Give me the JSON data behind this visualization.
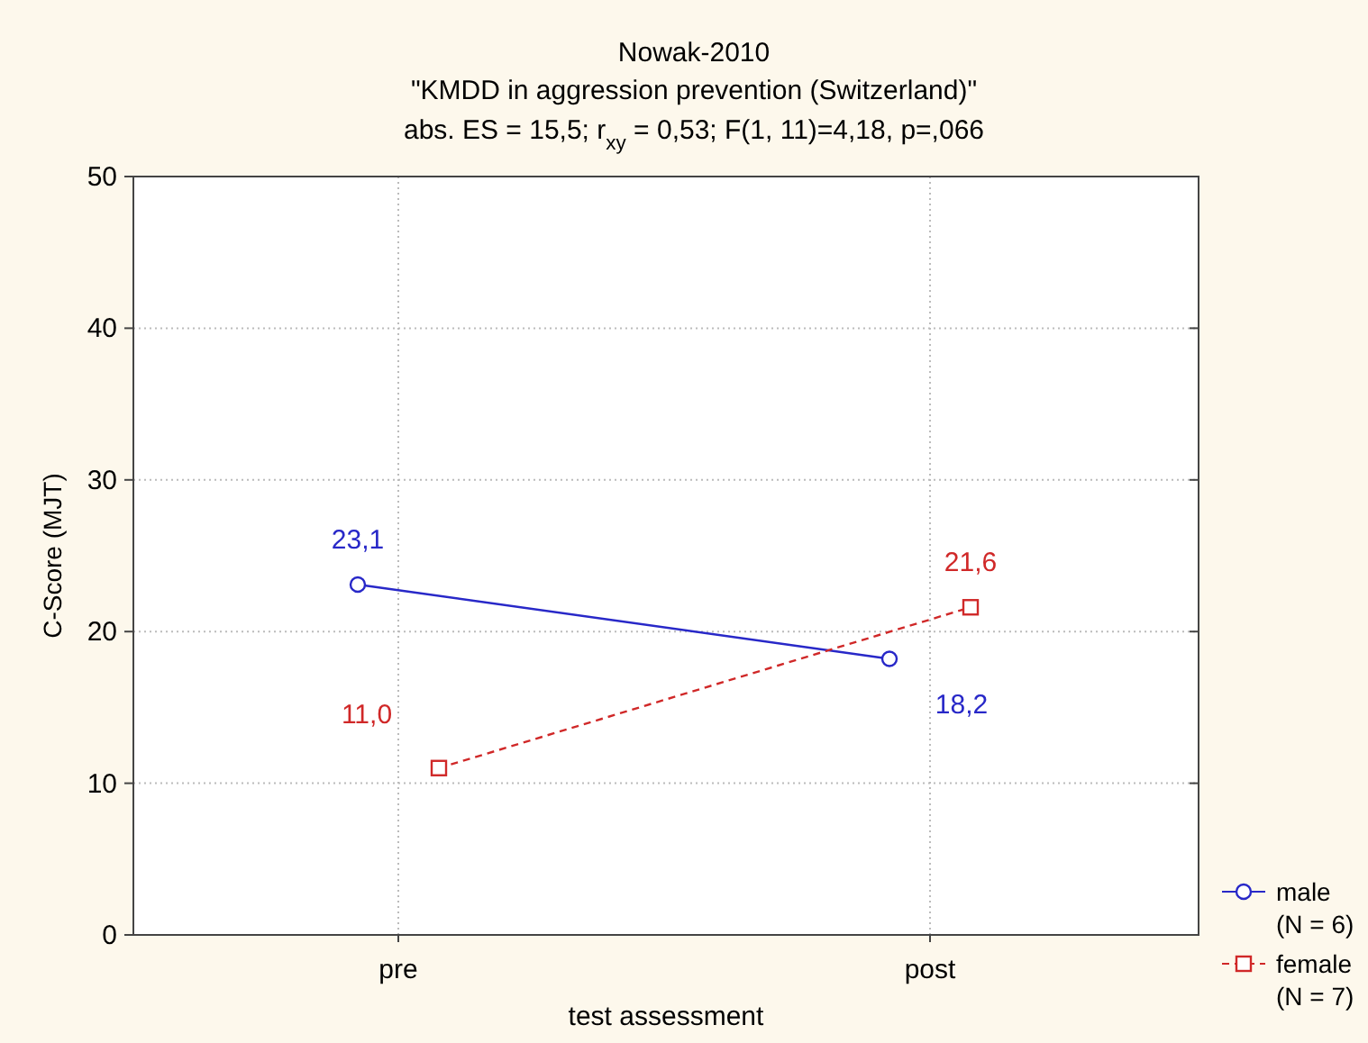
{
  "chart_data": {
    "type": "line",
    "title": "Nowak-2010",
    "subtitle": "\"KMDD in aggression prevention (Switzerland)\"\nabs. ES = 15,5; r$_{xy}$ = 0,53; F(1, 11)=4,18, p=,066",
    "xlabel": "test assessment",
    "ylabel": "C-Score (MJT)",
    "categories": [
      "pre",
      "post"
    ],
    "series": [
      {
        "name": "male (N = 6)",
        "color": "#2828c8",
        "values": [
          23.1,
          18.2
        ],
        "value_labels": [
          "23,1",
          "18,2"
        ],
        "marker": "circle",
        "line_style": "solid"
      },
      {
        "name": "female (N = 7)",
        "color": "#d02828",
        "values": [
          11.0,
          21.6
        ],
        "value_labels": [
          "11,0",
          "21,6"
        ],
        "marker": "square",
        "line_style": "dashed"
      }
    ],
    "ylim": [
      0,
      50
    ],
    "yticks": [
      0,
      10,
      20,
      30,
      40,
      50
    ],
    "grid": true,
    "legend": "bottom right"
  }
}
